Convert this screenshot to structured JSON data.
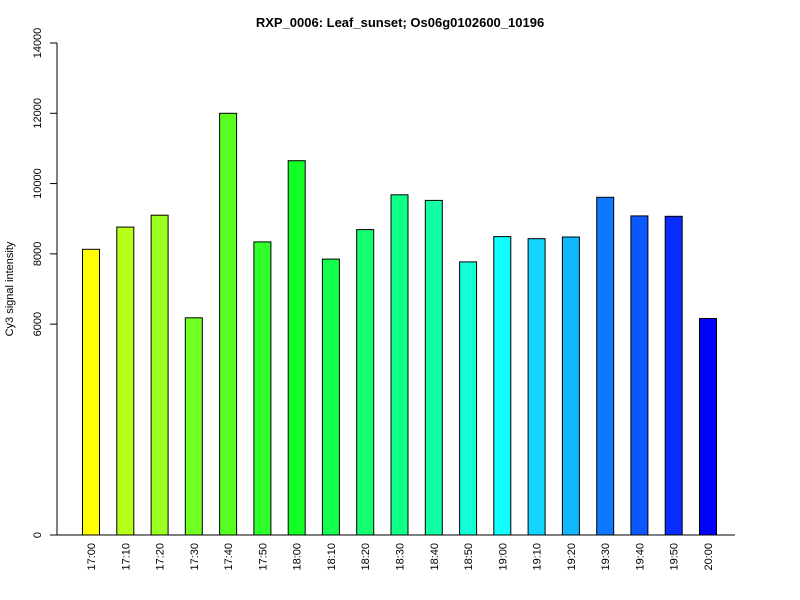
{
  "chart_data": {
    "type": "bar",
    "title": "RXP_0006: Leaf_sunset; Os06g0102600_10196",
    "xlabel": "",
    "ylabel": "Cy3 signal intensity",
    "ylim": [
      0,
      14000
    ],
    "y_ticks": [
      0,
      6000,
      8000,
      10000,
      12000,
      14000
    ],
    "categories": [
      "17:00",
      "17:10",
      "17:20",
      "17:30",
      "17:40",
      "17:50",
      "18:00",
      "18:10",
      "18:20",
      "18:30",
      "18:40",
      "18:50",
      "19:00",
      "19:10",
      "19:20",
      "19:30",
      "19:40",
      "19:50",
      "20:00"
    ],
    "values": [
      8130,
      8760,
      9100,
      6180,
      12000,
      8340,
      10650,
      7850,
      8690,
      9680,
      9520,
      7770,
      8490,
      8430,
      8480,
      9610,
      9080,
      9070,
      6160
    ],
    "colors": [
      "#ffff00",
      "#b7ff1a",
      "#9cff1f",
      "#72ff24",
      "#56ff1f",
      "#30ff2a",
      "#11ff22",
      "#14ff4f",
      "#12ff70",
      "#10ff86",
      "#12ffa8",
      "#12ffd8",
      "#12ffff",
      "#12d6ff",
      "#12b8ff",
      "#1077ff",
      "#0c58ff",
      "#0a2cff",
      "#0000ff"
    ],
    "grid": false,
    "legend": "none"
  }
}
